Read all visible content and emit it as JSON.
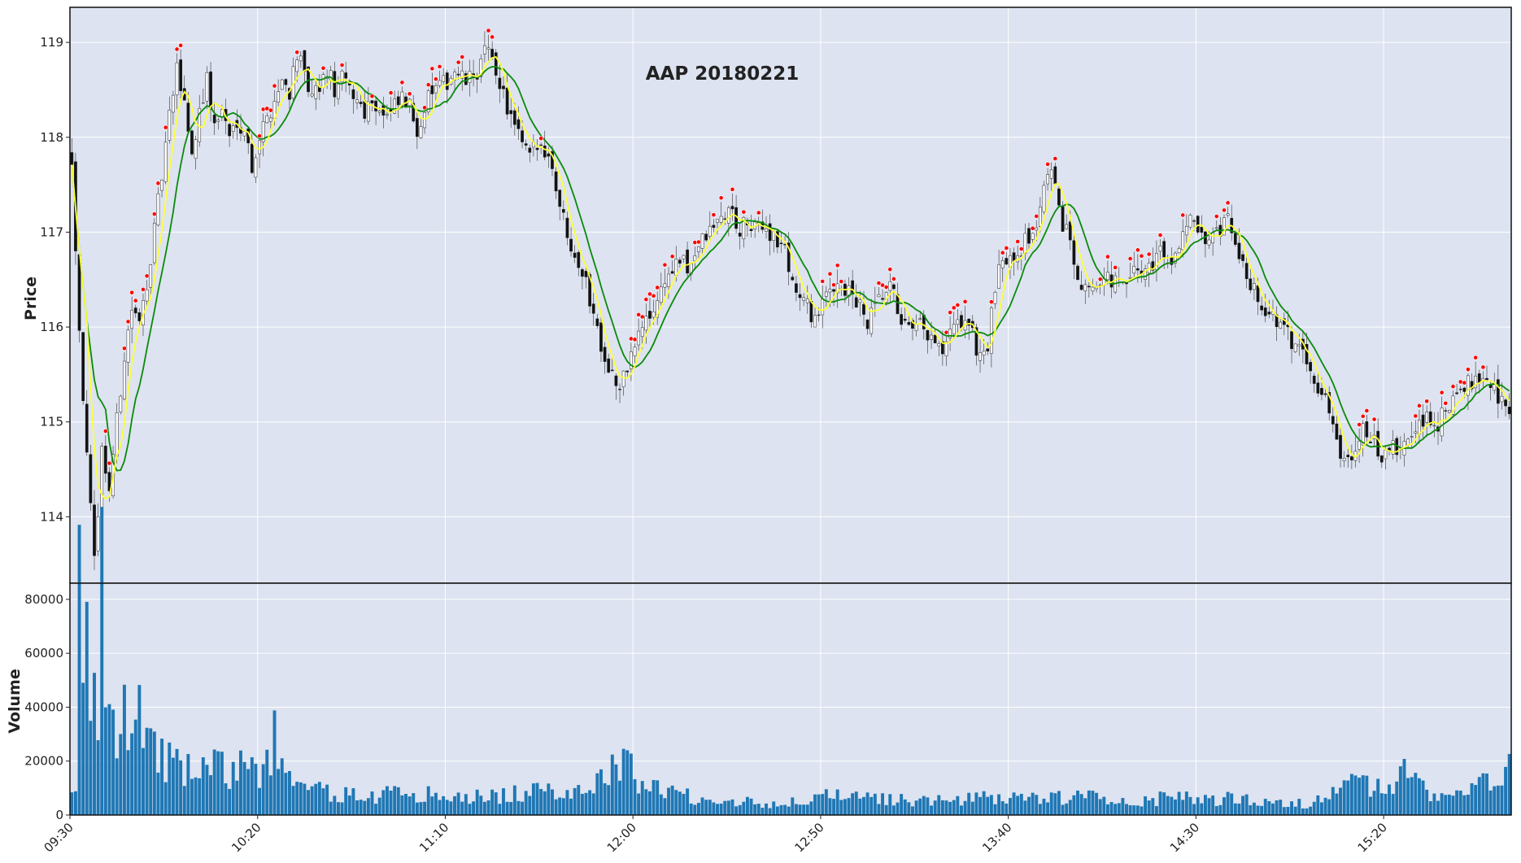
{
  "chart_data": {
    "type": "candlestick",
    "title": "AAP 20180221",
    "price_panel": {
      "ylabel": "Price",
      "ylim": [
        113.3,
        119.37
      ],
      "yticks": [
        114,
        115,
        116,
        117,
        118,
        119
      ],
      "grid": true,
      "background": "#dde3f0",
      "candle_up_color": "#ffffff",
      "candle_down_color": "#111111",
      "ma_fast_color": "#ffff33",
      "ma_slow_color": "#0a8a0a",
      "marker_color": "#ff0000",
      "close_keypoints": [
        [
          0,
          117.8
        ],
        [
          2,
          116.0
        ],
        [
          4,
          114.6
        ],
        [
          6,
          113.5
        ],
        [
          8,
          114.7
        ],
        [
          10,
          114.3
        ],
        [
          12,
          115.0
        ],
        [
          14,
          115.7
        ],
        [
          16,
          116.2
        ],
        [
          18,
          116.0
        ],
        [
          20,
          116.5
        ],
        [
          22,
          117.0
        ],
        [
          24,
          117.6
        ],
        [
          26,
          118.2
        ],
        [
          28,
          118.7
        ],
        [
          30,
          118.4
        ],
        [
          32,
          117.8
        ],
        [
          34,
          118.3
        ],
        [
          36,
          118.6
        ],
        [
          38,
          118.1
        ],
        [
          40,
          118.3
        ],
        [
          42,
          118.0
        ],
        [
          44,
          118.2
        ],
        [
          46,
          118.1
        ],
        [
          48,
          117.7
        ],
        [
          50,
          118.0
        ],
        [
          52,
          118.2
        ],
        [
          54,
          118.4
        ],
        [
          56,
          118.6
        ],
        [
          58,
          118.5
        ],
        [
          60,
          118.9
        ],
        [
          62,
          118.6
        ],
        [
          64,
          118.4
        ],
        [
          66,
          118.5
        ],
        [
          68,
          118.7
        ],
        [
          70,
          118.5
        ],
        [
          72,
          118.6
        ],
        [
          74,
          118.5
        ],
        [
          76,
          118.4
        ],
        [
          78,
          118.3
        ],
        [
          80,
          118.4
        ],
        [
          82,
          118.3
        ],
        [
          84,
          118.2
        ],
        [
          86,
          118.3
        ],
        [
          88,
          118.4
        ],
        [
          90,
          118.3
        ],
        [
          92,
          118.1
        ],
        [
          94,
          118.3
        ],
        [
          96,
          118.5
        ],
        [
          98,
          118.5
        ],
        [
          100,
          118.6
        ],
        [
          102,
          118.7
        ],
        [
          104,
          118.6
        ],
        [
          106,
          118.6
        ],
        [
          108,
          118.7
        ],
        [
          110,
          118.9
        ],
        [
          112,
          118.8
        ],
        [
          114,
          118.6
        ],
        [
          116,
          118.3
        ],
        [
          118,
          118.1
        ],
        [
          120,
          117.9
        ],
        [
          122,
          117.8
        ],
        [
          124,
          117.9
        ],
        [
          126,
          117.9
        ],
        [
          128,
          117.7
        ],
        [
          130,
          117.3
        ],
        [
          132,
          117.0
        ],
        [
          134,
          116.8
        ],
        [
          136,
          116.6
        ],
        [
          138,
          116.3
        ],
        [
          140,
          116.0
        ],
        [
          142,
          115.7
        ],
        [
          144,
          115.5
        ],
        [
          146,
          115.3
        ],
        [
          148,
          115.6
        ],
        [
          150,
          115.8
        ],
        [
          152,
          116.0
        ],
        [
          154,
          116.1
        ],
        [
          156,
          116.3
        ],
        [
          158,
          116.5
        ],
        [
          160,
          116.6
        ],
        [
          162,
          116.7
        ],
        [
          164,
          116.6
        ],
        [
          166,
          116.8
        ],
        [
          168,
          116.9
        ],
        [
          170,
          117.0
        ],
        [
          172,
          117.1
        ],
        [
          174,
          117.2
        ],
        [
          176,
          117.2
        ],
        [
          178,
          117.0
        ],
        [
          180,
          117.1
        ],
        [
          182,
          117.0
        ],
        [
          184,
          117.1
        ],
        [
          186,
          117.0
        ],
        [
          188,
          116.9
        ],
        [
          190,
          116.8
        ],
        [
          192,
          116.5
        ],
        [
          194,
          116.3
        ],
        [
          196,
          116.2
        ],
        [
          198,
          116.1
        ],
        [
          200,
          116.2
        ],
        [
          202,
          116.4
        ],
        [
          204,
          116.5
        ],
        [
          206,
          116.4
        ],
        [
          208,
          116.3
        ],
        [
          210,
          116.2
        ],
        [
          212,
          116.0
        ],
        [
          214,
          116.2
        ],
        [
          216,
          116.3
        ],
        [
          218,
          116.4
        ],
        [
          220,
          116.2
        ],
        [
          222,
          116.0
        ],
        [
          224,
          115.9
        ],
        [
          226,
          116.0
        ],
        [
          228,
          115.9
        ],
        [
          230,
          115.8
        ],
        [
          232,
          115.7
        ],
        [
          234,
          115.9
        ],
        [
          236,
          116.0
        ],
        [
          238,
          116.1
        ],
        [
          240,
          115.9
        ],
        [
          242,
          115.7
        ],
        [
          244,
          115.8
        ],
        [
          246,
          116.4
        ],
        [
          248,
          116.7
        ],
        [
          250,
          116.8
        ],
        [
          252,
          116.8
        ],
        [
          254,
          116.9
        ],
        [
          256,
          117.0
        ],
        [
          258,
          117.2
        ],
        [
          260,
          117.7
        ],
        [
          262,
          117.4
        ],
        [
          264,
          117.1
        ],
        [
          266,
          116.9
        ],
        [
          268,
          116.6
        ],
        [
          270,
          116.4
        ],
        [
          272,
          116.5
        ],
        [
          274,
          116.4
        ],
        [
          276,
          116.5
        ],
        [
          278,
          116.5
        ],
        [
          280,
          116.4
        ],
        [
          282,
          116.5
        ],
        [
          284,
          116.6
        ],
        [
          286,
          116.6
        ],
        [
          288,
          116.7
        ],
        [
          290,
          116.8
        ],
        [
          292,
          116.7
        ],
        [
          294,
          116.8
        ],
        [
          296,
          117.0
        ],
        [
          298,
          117.1
        ],
        [
          300,
          117.0
        ],
        [
          302,
          116.8
        ],
        [
          304,
          116.9
        ],
        [
          306,
          117.0
        ],
        [
          308,
          117.1
        ],
        [
          310,
          116.9
        ],
        [
          312,
          116.6
        ],
        [
          314,
          116.5
        ],
        [
          316,
          116.3
        ],
        [
          318,
          116.2
        ],
        [
          320,
          116.1
        ],
        [
          322,
          116.0
        ],
        [
          324,
          115.9
        ],
        [
          326,
          115.8
        ],
        [
          328,
          115.8
        ],
        [
          330,
          115.6
        ],
        [
          332,
          115.4
        ],
        [
          334,
          115.2
        ],
        [
          336,
          115.0
        ],
        [
          338,
          114.7
        ],
        [
          340,
          114.6
        ],
        [
          342,
          114.8
        ],
        [
          344,
          114.9
        ],
        [
          346,
          114.8
        ],
        [
          348,
          114.7
        ],
        [
          350,
          114.6
        ],
        [
          352,
          114.7
        ],
        [
          354,
          114.7
        ],
        [
          356,
          114.8
        ],
        [
          358,
          114.9
        ],
        [
          360,
          115.0
        ],
        [
          362,
          115.0
        ],
        [
          364,
          115.0
        ],
        [
          366,
          115.1
        ],
        [
          368,
          115.2
        ],
        [
          370,
          115.3
        ],
        [
          372,
          115.4
        ],
        [
          374,
          115.5
        ],
        [
          376,
          115.5
        ],
        [
          378,
          115.4
        ],
        [
          380,
          115.3
        ],
        [
          382,
          115.2
        ],
        [
          384,
          115.0
        ],
        [
          386,
          115.1
        ],
        [
          388,
          115.1
        ],
        [
          390,
          114.9
        ],
        [
          392,
          114.6
        ],
        [
          394,
          114.4
        ],
        [
          396,
          114.2
        ],
        [
          398,
          114.0
        ],
        [
          400,
          114.0
        ],
        [
          402,
          114.1
        ]
      ]
    },
    "volume_panel": {
      "ylabel": "Volume",
      "ylim": [
        0,
        86000
      ],
      "yticks": [
        0,
        20000,
        40000,
        60000,
        80000
      ],
      "bar_color": "#1f77b4",
      "volume_keypoints": [
        [
          0,
          15000
        ],
        [
          1,
          7000
        ],
        [
          2,
          75000
        ],
        [
          3,
          70000
        ],
        [
          4,
          57000
        ],
        [
          5,
          48000
        ],
        [
          6,
          38000
        ],
        [
          7,
          43000
        ],
        [
          8,
          79000
        ],
        [
          9,
          40000
        ],
        [
          10,
          62000
        ],
        [
          11,
          34000
        ],
        [
          12,
          33000
        ],
        [
          13,
          32000
        ],
        [
          14,
          40000
        ],
        [
          15,
          34000
        ],
        [
          16,
          30000
        ],
        [
          17,
          38000
        ],
        [
          18,
          59000
        ],
        [
          19,
          42000
        ],
        [
          20,
          28000
        ],
        [
          22,
          25000
        ],
        [
          26,
          20000
        ],
        [
          30,
          16000
        ],
        [
          34,
          17000
        ],
        [
          38,
          18000
        ],
        [
          42,
          16000
        ],
        [
          46,
          19000
        ],
        [
          50,
          13000
        ],
        [
          54,
          30000
        ],
        [
          56,
          16000
        ],
        [
          60,
          10000
        ],
        [
          70,
          8000
        ],
        [
          80,
          7000
        ],
        [
          90,
          9000
        ],
        [
          100,
          6000
        ],
        [
          110,
          7000
        ],
        [
          120,
          8000
        ],
        [
          130,
          9000
        ],
        [
          140,
          12000
        ],
        [
          146,
          20000
        ],
        [
          150,
          15000
        ],
        [
          160,
          8000
        ],
        [
          170,
          6000
        ],
        [
          180,
          5000
        ],
        [
          190,
          4000
        ],
        [
          200,
          7000
        ],
        [
          210,
          6000
        ],
        [
          220,
          6000
        ],
        [
          230,
          5000
        ],
        [
          240,
          6000
        ],
        [
          250,
          7000
        ],
        [
          260,
          6000
        ],
        [
          270,
          7000
        ],
        [
          280,
          5000
        ],
        [
          290,
          6000
        ],
        [
          300,
          6000
        ],
        [
          310,
          6000
        ],
        [
          320,
          5000
        ],
        [
          330,
          4000
        ],
        [
          340,
          12000
        ],
        [
          350,
          10000
        ],
        [
          356,
          16000
        ],
        [
          360,
          9000
        ],
        [
          364,
          7000
        ],
        [
          370,
          8000
        ],
        [
          374,
          10000
        ],
        [
          378,
          12000
        ],
        [
          382,
          17000
        ],
        [
          386,
          20000
        ],
        [
          390,
          22000
        ],
        [
          394,
          18000
        ],
        [
          398,
          20000
        ],
        [
          400,
          30000
        ],
        [
          402,
          34000
        ]
      ]
    },
    "x": {
      "start": "09:30",
      "end": "15:53",
      "interval_minutes": 1,
      "tick_labels": [
        "09:30",
        "10:20",
        "11:10",
        "12:00",
        "12:50",
        "13:40",
        "14:30",
        "15:20"
      ],
      "tick_rotation_deg": 45
    }
  }
}
